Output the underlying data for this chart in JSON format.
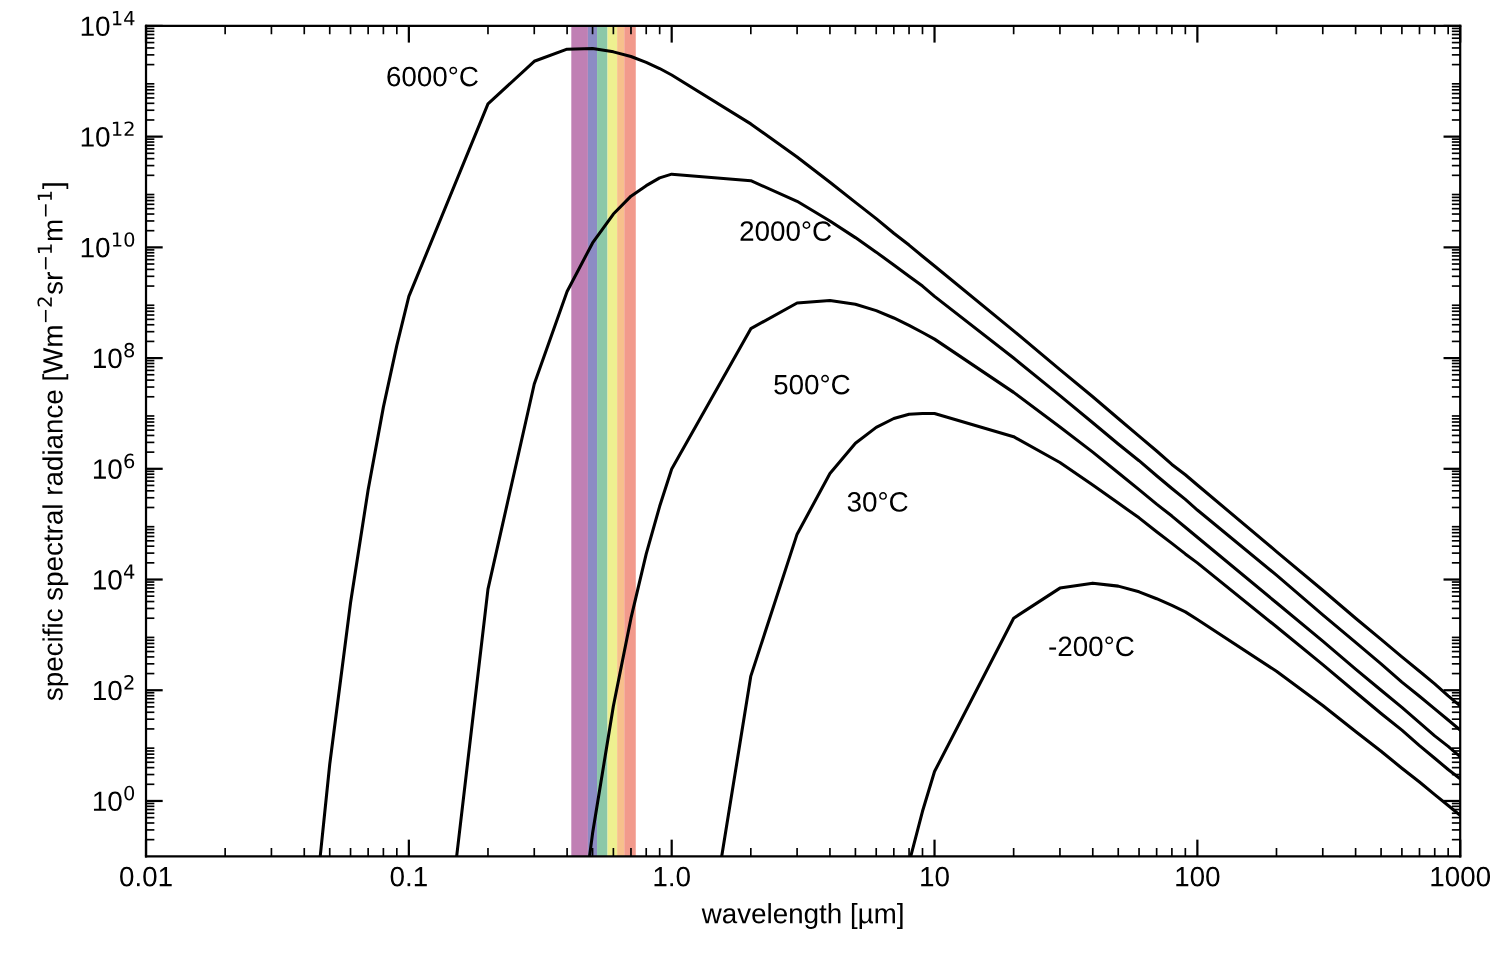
{
  "chart_data": {
    "type": "line",
    "xlabel": "wavelength [µm]",
    "ylabel": "specific spectral radiance [Wm$^{−2}$sr$^{−1}$m$^{−1}$]",
    "log": "xy",
    "xlim": [
      0.01,
      1000
    ],
    "ylim": [
      0.1,
      100000000000000.0
    ],
    "xticks": [
      0.01,
      0.1,
      {
        "value": 1,
        "label": "1.0"
      },
      10,
      100,
      1000
    ],
    "yticks": [
      {
        "value": 1,
        "label": "10$^{0}$"
      },
      {
        "value": 100,
        "label": "10$^{2}$"
      },
      {
        "value": 10000.0,
        "label": "10$^{4}$"
      },
      {
        "value": 1000000.0,
        "label": "10$^{6}$"
      },
      {
        "value": 100000000.0,
        "label": "10$^{8}$"
      },
      {
        "value": 10000000000.0,
        "label": "10$^{10}$"
      },
      {
        "value": 1000000000000.0,
        "label": "10$^{12}$"
      },
      {
        "value": 100000000000000.0,
        "label": "10$^{14}$"
      }
    ],
    "series": [
      {
        "name": "6000°C",
        "color": "#000000",
        "x": [
          0.046,
          0.05,
          0.06,
          0.07,
          0.08,
          0.09,
          0.1,
          0.2,
          0.3,
          0.4,
          0.5,
          0.6,
          0.7,
          0.8,
          0.9,
          1,
          2,
          3,
          4,
          5,
          6,
          7,
          8,
          9,
          10,
          20,
          30,
          40,
          50,
          60,
          70,
          80,
          90,
          100,
          200,
          300,
          400,
          500,
          600,
          700,
          800,
          900,
          1000
        ],
        "values": [
          0.1,
          4.6,
          3800.0,
          420000.0,
          13000000.0,
          170000000.0,
          1300000000.0,
          3900000000000.0,
          23000000000000.0,
          38000000000000.0,
          39000000000000.0,
          34000000000000.0,
          28000000000000.0,
          22000000000000.0,
          17000000000000.0,
          13000000000000.0,
          1700000000000.0,
          430000000000.0,
          150000000000.0,
          65000000000.0,
          33000000000.0,
          18000000000.0,
          11000000000.0,
          6900000000.0,
          4600000000.0,
          310000000.0,
          62000000.0,
          20000000.0,
          8100000.0,
          3900000.0,
          2100000.0,
          1200000.0,
          780000.0,
          510000.0,
          32000.0,
          6400.0,
          2000.0,
          830,
          400,
          220,
          130,
          79,
          52
        ]
      },
      {
        "name": "2000°C",
        "color": "#000000",
        "x": [
          0.152,
          0.2,
          0.3,
          0.4,
          0.5,
          0.6,
          0.7,
          0.8,
          0.9,
          1,
          2,
          3,
          4,
          5,
          6,
          7,
          8,
          9,
          10,
          20,
          30,
          40,
          50,
          60,
          70,
          80,
          90,
          100,
          200,
          300,
          400,
          500,
          600,
          700,
          800,
          900,
          1000
        ],
        "values": [
          0.1,
          6700.0,
          34000000.0,
          1600000000.0,
          12000000000.0,
          40000000000.0,
          84000000000.0,
          130000000000.0,
          180000000000.0,
          210000000000.0,
          160000000000.0,
          68000000000.0,
          30000000000.0,
          15000000000.0,
          8200000000.0,
          4800000000.0,
          3000000000.0,
          2000000000.0,
          1300000000.0,
          100000000.0,
          21000000.0,
          6800000.0,
          2800000.0,
          1400000.0,
          750000.0,
          440000.0,
          280000.0,
          180000.0,
          12000.0,
          2300.0,
          730,
          300,
          140,
          78,
          46,
          29,
          19
        ]
      },
      {
        "name": "500°C",
        "color": "#000000",
        "x": [
          0.487,
          0.5,
          0.6,
          0.7,
          0.8,
          0.9,
          1,
          2,
          3,
          4,
          5,
          6,
          7,
          8,
          9,
          10,
          20,
          30,
          40,
          50,
          60,
          70,
          80,
          90,
          100,
          200,
          300,
          400,
          500,
          600,
          700,
          800,
          900,
          1000
        ],
        "values": [
          0.1,
          0.26,
          52,
          2000.0,
          29000.0,
          210000.0,
          990000.0,
          340000000.0,
          990000000.0,
          1100000000.0,
          940000000.0,
          720000000.0,
          530000000.0,
          390000000.0,
          290000000.0,
          220000000.0,
          24000000.0,
          5700000.0,
          2000000.0,
          850000.0,
          420000.0,
          230000.0,
          140000.0,
          88000.0,
          58000.0,
          3800.0,
          770,
          240,
          100,
          49,
          26,
          15,
          9.7,
          6.3
        ]
      },
      {
        "name": "30°C",
        "color": "#000000",
        "x": [
          1.55,
          2,
          3,
          4,
          5,
          6,
          7,
          8,
          9,
          10,
          20,
          30,
          40,
          50,
          60,
          70,
          80,
          90,
          100,
          200,
          300,
          400,
          500,
          600,
          700,
          800,
          900,
          1000
        ],
        "values": [
          0.1,
          180,
          66000.0,
          820000.0,
          2900000.0,
          5600000.0,
          8100000.0,
          9700000.0,
          10000000.0,
          10000000.0,
          3800000.0,
          1300000.0,
          510000.0,
          240000.0,
          130000.0,
          73000.0,
          45000.0,
          29000.0,
          20000.0,
          1400.0,
          290,
          92,
          38,
          19,
          10,
          5.9,
          3.7,
          2.5
        ]
      },
      {
        "name": "-200°C",
        "color": "#000000",
        "x": [
          8.12,
          9,
          10,
          20,
          30,
          40,
          50,
          60,
          70,
          80,
          90,
          100,
          200,
          300,
          400,
          500,
          600,
          700,
          800,
          900,
          1000
        ],
        "values": [
          0.1,
          0.65,
          3.4,
          2000.0,
          7000.0,
          8600.0,
          7600.0,
          6000.0,
          4500.0,
          3400.0,
          2600.0,
          1900.0,
          220,
          53,
          18,
          7.9,
          3.9,
          2.2,
          1.3,
          0.83,
          0.55
        ]
      }
    ],
    "bands": [
      {
        "axis": "x",
        "from": 0.415,
        "to": 0.48,
        "color": "#c080b4"
      },
      {
        "axis": "x",
        "from": 0.48,
        "to": 0.52,
        "color": "#8c8cc4"
      },
      {
        "axis": "x",
        "from": 0.52,
        "to": 0.57,
        "color": "#8cc8a8"
      },
      {
        "axis": "x",
        "from": 0.57,
        "to": 0.62,
        "color": "#eef090"
      },
      {
        "axis": "x",
        "from": 0.62,
        "to": 0.66,
        "color": "#f7c08c"
      },
      {
        "axis": "x",
        "from": 0.66,
        "to": 0.73,
        "color": "#f29a8c"
      }
    ]
  }
}
